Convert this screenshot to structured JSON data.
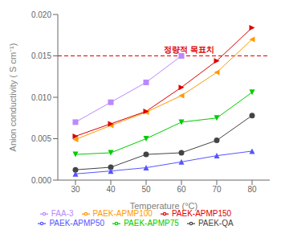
{
  "chart_data": {
    "type": "line",
    "xlabel": "Temperature (°C)",
    "ylabel": "Anion conductivity ( S cm⁻¹)",
    "x": [
      30,
      40,
      50,
      60,
      70,
      80
    ],
    "series": [
      {
        "name": "FAA-3",
        "color": "#bb88ff",
        "marker": "square",
        "line_style": "solid",
        "values": [
          0.007,
          0.0094,
          0.0118,
          0.015,
          null,
          null
        ]
      },
      {
        "name": "PAEK-QA",
        "color": "#444444",
        "marker": "circle",
        "line_style": "solid",
        "values": [
          0.00125,
          0.00155,
          0.0031,
          0.0033,
          0.0048,
          0.0078
        ]
      },
      {
        "name": "PAEK-APMP50",
        "color": "#5555ff",
        "marker": "triangle-up",
        "line_style": "solid",
        "values": [
          0.00075,
          0.0011,
          0.0015,
          0.0022,
          0.00295,
          0.0035
        ]
      },
      {
        "name": "PAEK-APMP75",
        "color": "#00cc00",
        "marker": "triangle-down",
        "line_style": "solid",
        "values": [
          0.0031,
          0.0033,
          0.005,
          0.007,
          0.0075,
          0.0106
        ]
      },
      {
        "name": "PAEK-APMP100",
        "color": "#ff9900",
        "marker": "triangle-left",
        "line_style": "solid",
        "values": [
          0.0049,
          0.0066,
          0.0082,
          0.0102,
          0.013,
          0.017
        ]
      },
      {
        "name": "PAEK-APMP150",
        "color": "#dd0000",
        "marker": "triangle-right",
        "line_style": "solid",
        "values": [
          0.0053,
          0.0068,
          0.0083,
          0.0112,
          0.0144,
          0.0184
        ]
      }
    ],
    "xlim": [
      25,
      85
    ],
    "ylim": [
      0.0,
      0.02
    ],
    "xticks": [
      30,
      40,
      50,
      60,
      70,
      80
    ],
    "yticks": [
      {
        "value": 0.0,
        "label": "0.000"
      },
      {
        "value": 0.005,
        "label": "0.005"
      },
      {
        "value": 0.01,
        "label": "0.010"
      },
      {
        "value": 0.015,
        "label": "0.015"
      },
      {
        "value": 0.02,
        "label": "0.020"
      }
    ],
    "grid": false,
    "legend": "bottom",
    "reference_lines": [
      {
        "y": 0.015,
        "color": "#dd0000",
        "line_style": "dashed"
      }
    ],
    "annotations": [
      {
        "text": "정량적 목표치",
        "x": 55,
        "y": 0.01525,
        "color": "#dd0000"
      }
    ]
  }
}
